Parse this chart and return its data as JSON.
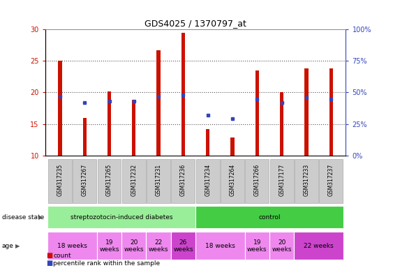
{
  "title": "GDS4025 / 1370797_at",
  "samples": [
    "GSM317235",
    "GSM317267",
    "GSM317265",
    "GSM317232",
    "GSM317231",
    "GSM317236",
    "GSM317234",
    "GSM317264",
    "GSM317266",
    "GSM317177",
    "GSM317233",
    "GSM317237"
  ],
  "counts": [
    25.0,
    16.0,
    20.2,
    18.8,
    26.7,
    29.5,
    14.2,
    12.8,
    23.5,
    20.0,
    23.8,
    23.8
  ],
  "percentiles_pct": [
    47,
    42,
    43,
    43,
    47,
    48,
    32,
    29,
    45,
    42,
    46,
    45
  ],
  "ylim_left": [
    10,
    30
  ],
  "ylim_right": [
    0,
    100
  ],
  "yticks_left": [
    10,
    15,
    20,
    25,
    30
  ],
  "yticks_right": [
    0,
    25,
    50,
    75,
    100
  ],
  "ytick_labels_right": [
    "0%",
    "25%",
    "50%",
    "75%",
    "100%"
  ],
  "bar_color": "#cc1100",
  "percentile_color": "#3344bb",
  "grid_dotted_color": "#555555",
  "disease_groups": [
    {
      "label": "streptozotocin-induced diabetes",
      "start": 0,
      "end": 6,
      "color": "#99ee99"
    },
    {
      "label": "control",
      "start": 6,
      "end": 12,
      "color": "#44cc44"
    }
  ],
  "age_groups": [
    {
      "label": "18 weeks",
      "start": 0,
      "end": 2,
      "color": "#ee88ee"
    },
    {
      "label": "19\nweeks",
      "start": 2,
      "end": 3,
      "color": "#ee88ee"
    },
    {
      "label": "20\nweeks",
      "start": 3,
      "end": 4,
      "color": "#ee88ee"
    },
    {
      "label": "22\nweeks",
      "start": 4,
      "end": 5,
      "color": "#ee88ee"
    },
    {
      "label": "26\nweeks",
      "start": 5,
      "end": 6,
      "color": "#cc44cc"
    },
    {
      "label": "18 weeks",
      "start": 6,
      "end": 8,
      "color": "#ee88ee"
    },
    {
      "label": "19\nweeks",
      "start": 8,
      "end": 9,
      "color": "#ee88ee"
    },
    {
      "label": "20\nweeks",
      "start": 9,
      "end": 10,
      "color": "#ee88ee"
    },
    {
      "label": "22 weeks",
      "start": 10,
      "end": 12,
      "color": "#cc44cc"
    }
  ],
  "legend_count_label": "count",
  "legend_percentile_label": "percentile rank within the sample",
  "bar_width": 0.15,
  "background_color": "#ffffff",
  "tick_label_color_left": "#cc1100",
  "tick_label_color_right": "#3344bb",
  "sample_box_color": "#cccccc",
  "sample_box_edge": "#aaaaaa"
}
